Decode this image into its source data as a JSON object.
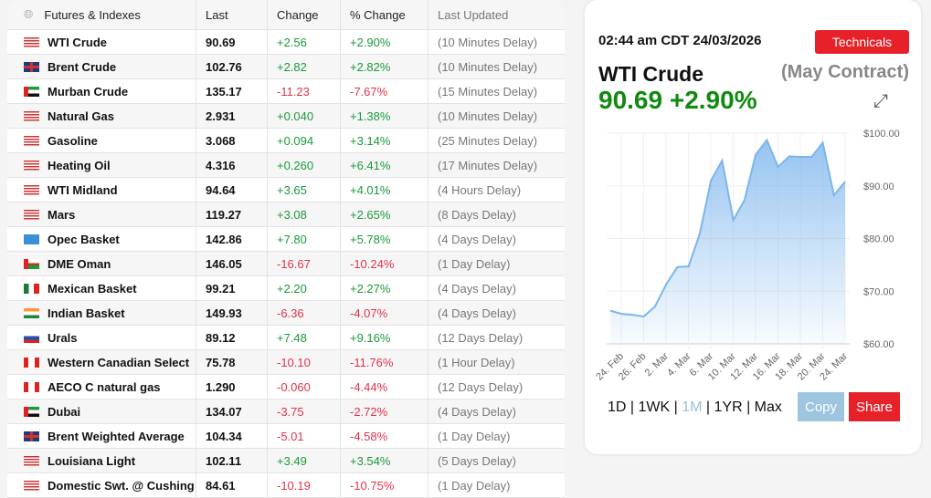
{
  "table": {
    "headers": [
      "Futures & Indexes",
      "Last",
      "Change",
      "% Change",
      "Last Updated"
    ],
    "rows": [
      {
        "flag": "us",
        "name": "WTI Crude",
        "last": "90.69",
        "change": "+2.56",
        "pct": "+2.90%",
        "updated": "(10 Minutes Delay)"
      },
      {
        "flag": "uk",
        "name": "Brent Crude",
        "last": "102.76",
        "change": "+2.82",
        "pct": "+2.82%",
        "updated": "(10 Minutes Delay)"
      },
      {
        "flag": "ae",
        "name": "Murban Crude",
        "last": "135.17",
        "change": "-11.23",
        "pct": "-7.67%",
        "updated": "(15 Minutes Delay)"
      },
      {
        "flag": "us",
        "name": "Natural Gas",
        "last": "2.931",
        "change": "+0.040",
        "pct": "+1.38%",
        "updated": "(10 Minutes Delay)"
      },
      {
        "flag": "us",
        "name": "Gasoline",
        "last": "3.068",
        "change": "+0.094",
        "pct": "+3.14%",
        "updated": "(25 Minutes Delay)"
      },
      {
        "flag": "us",
        "name": "Heating Oil",
        "last": "4.316",
        "change": "+0.260",
        "pct": "+6.41%",
        "updated": "(17 Minutes Delay)"
      },
      {
        "flag": "us",
        "name": "WTI Midland",
        "last": "94.64",
        "change": "+3.65",
        "pct": "+4.01%",
        "updated": "(4 Hours Delay)"
      },
      {
        "flag": "us",
        "name": "Mars",
        "last": "119.27",
        "change": "+3.08",
        "pct": "+2.65%",
        "updated": "(8 Days Delay)"
      },
      {
        "flag": "opec",
        "name": "Opec Basket",
        "last": "142.86",
        "change": "+7.80",
        "pct": "+5.78%",
        "updated": "(4 Days Delay)"
      },
      {
        "flag": "om",
        "name": "DME Oman",
        "last": "146.05",
        "change": "-16.67",
        "pct": "-10.24%",
        "updated": "(1 Day Delay)"
      },
      {
        "flag": "mx",
        "name": "Mexican Basket",
        "last": "99.21",
        "change": "+2.20",
        "pct": "+2.27%",
        "updated": "(4 Days Delay)"
      },
      {
        "flag": "in",
        "name": "Indian Basket",
        "last": "149.93",
        "change": "-6.36",
        "pct": "-4.07%",
        "updated": "(4 Days Delay)"
      },
      {
        "flag": "ru",
        "name": "Urals",
        "last": "89.12",
        "change": "+7.48",
        "pct": "+9.16%",
        "updated": "(12 Days Delay)"
      },
      {
        "flag": "ca",
        "name": "Western Canadian Select",
        "last": "75.78",
        "change": "-10.10",
        "pct": "-11.76%",
        "updated": "(1 Hour Delay)"
      },
      {
        "flag": "ca",
        "name": "AECO C natural gas",
        "last": "1.290",
        "change": "-0.060",
        "pct": "-4.44%",
        "updated": "(12 Days Delay)"
      },
      {
        "flag": "ae",
        "name": "Dubai",
        "last": "134.07",
        "change": "-3.75",
        "pct": "-2.72%",
        "updated": "(4 Days Delay)"
      },
      {
        "flag": "uk",
        "name": "Brent Weighted Average",
        "last": "104.34",
        "change": "-5.01",
        "pct": "-4.58%",
        "updated": "(1 Day Delay)"
      },
      {
        "flag": "us",
        "name": "Louisiana Light",
        "last": "102.11",
        "change": "+3.49",
        "pct": "+3.54%",
        "updated": "(5 Days Delay)"
      },
      {
        "flag": "us",
        "name": "Domestic Swt. @ Cushing",
        "last": "84.61",
        "change": "-10.19",
        "pct": "-10.75%",
        "updated": "(1 Day Delay)"
      }
    ]
  },
  "card": {
    "timestamp": "02:44 am CDT 24/03/2026",
    "technicals": "Technicals",
    "name": "WTI Crude",
    "contract": "(May Contract)",
    "price": "90.69 +2.90%",
    "ranges": [
      "1D",
      "1WK",
      "1M",
      "1YR",
      "Max"
    ],
    "active_range": "1M",
    "copy": "Copy",
    "share": "Share"
  },
  "colors": {
    "up": "#1a9a3a",
    "down": "#e0344a",
    "accent": "#e6212a",
    "line": "#7cb5ec"
  },
  "chart_data": {
    "type": "area",
    "ylim": [
      60,
      100
    ],
    "yticks": [
      "$60.00",
      "$70.00",
      "$80.00",
      "$90.00",
      "$100.00"
    ],
    "xticks": [
      "24. Feb",
      "26. Feb",
      "2. Mar",
      "4. Mar",
      "6. Mar",
      "10. Mar",
      "12. Mar",
      "16. Mar",
      "18. Mar",
      "20. Mar",
      "24. Mar"
    ],
    "values": [
      66.3,
      65.7,
      65.5,
      65.2,
      67.1,
      71.3,
      74.6,
      74.7,
      80.9,
      91.0,
      94.8,
      83.5,
      87.3,
      95.9,
      98.7,
      93.6,
      95.6,
      95.5,
      95.5,
      98.2,
      88.2,
      90.8
    ]
  }
}
